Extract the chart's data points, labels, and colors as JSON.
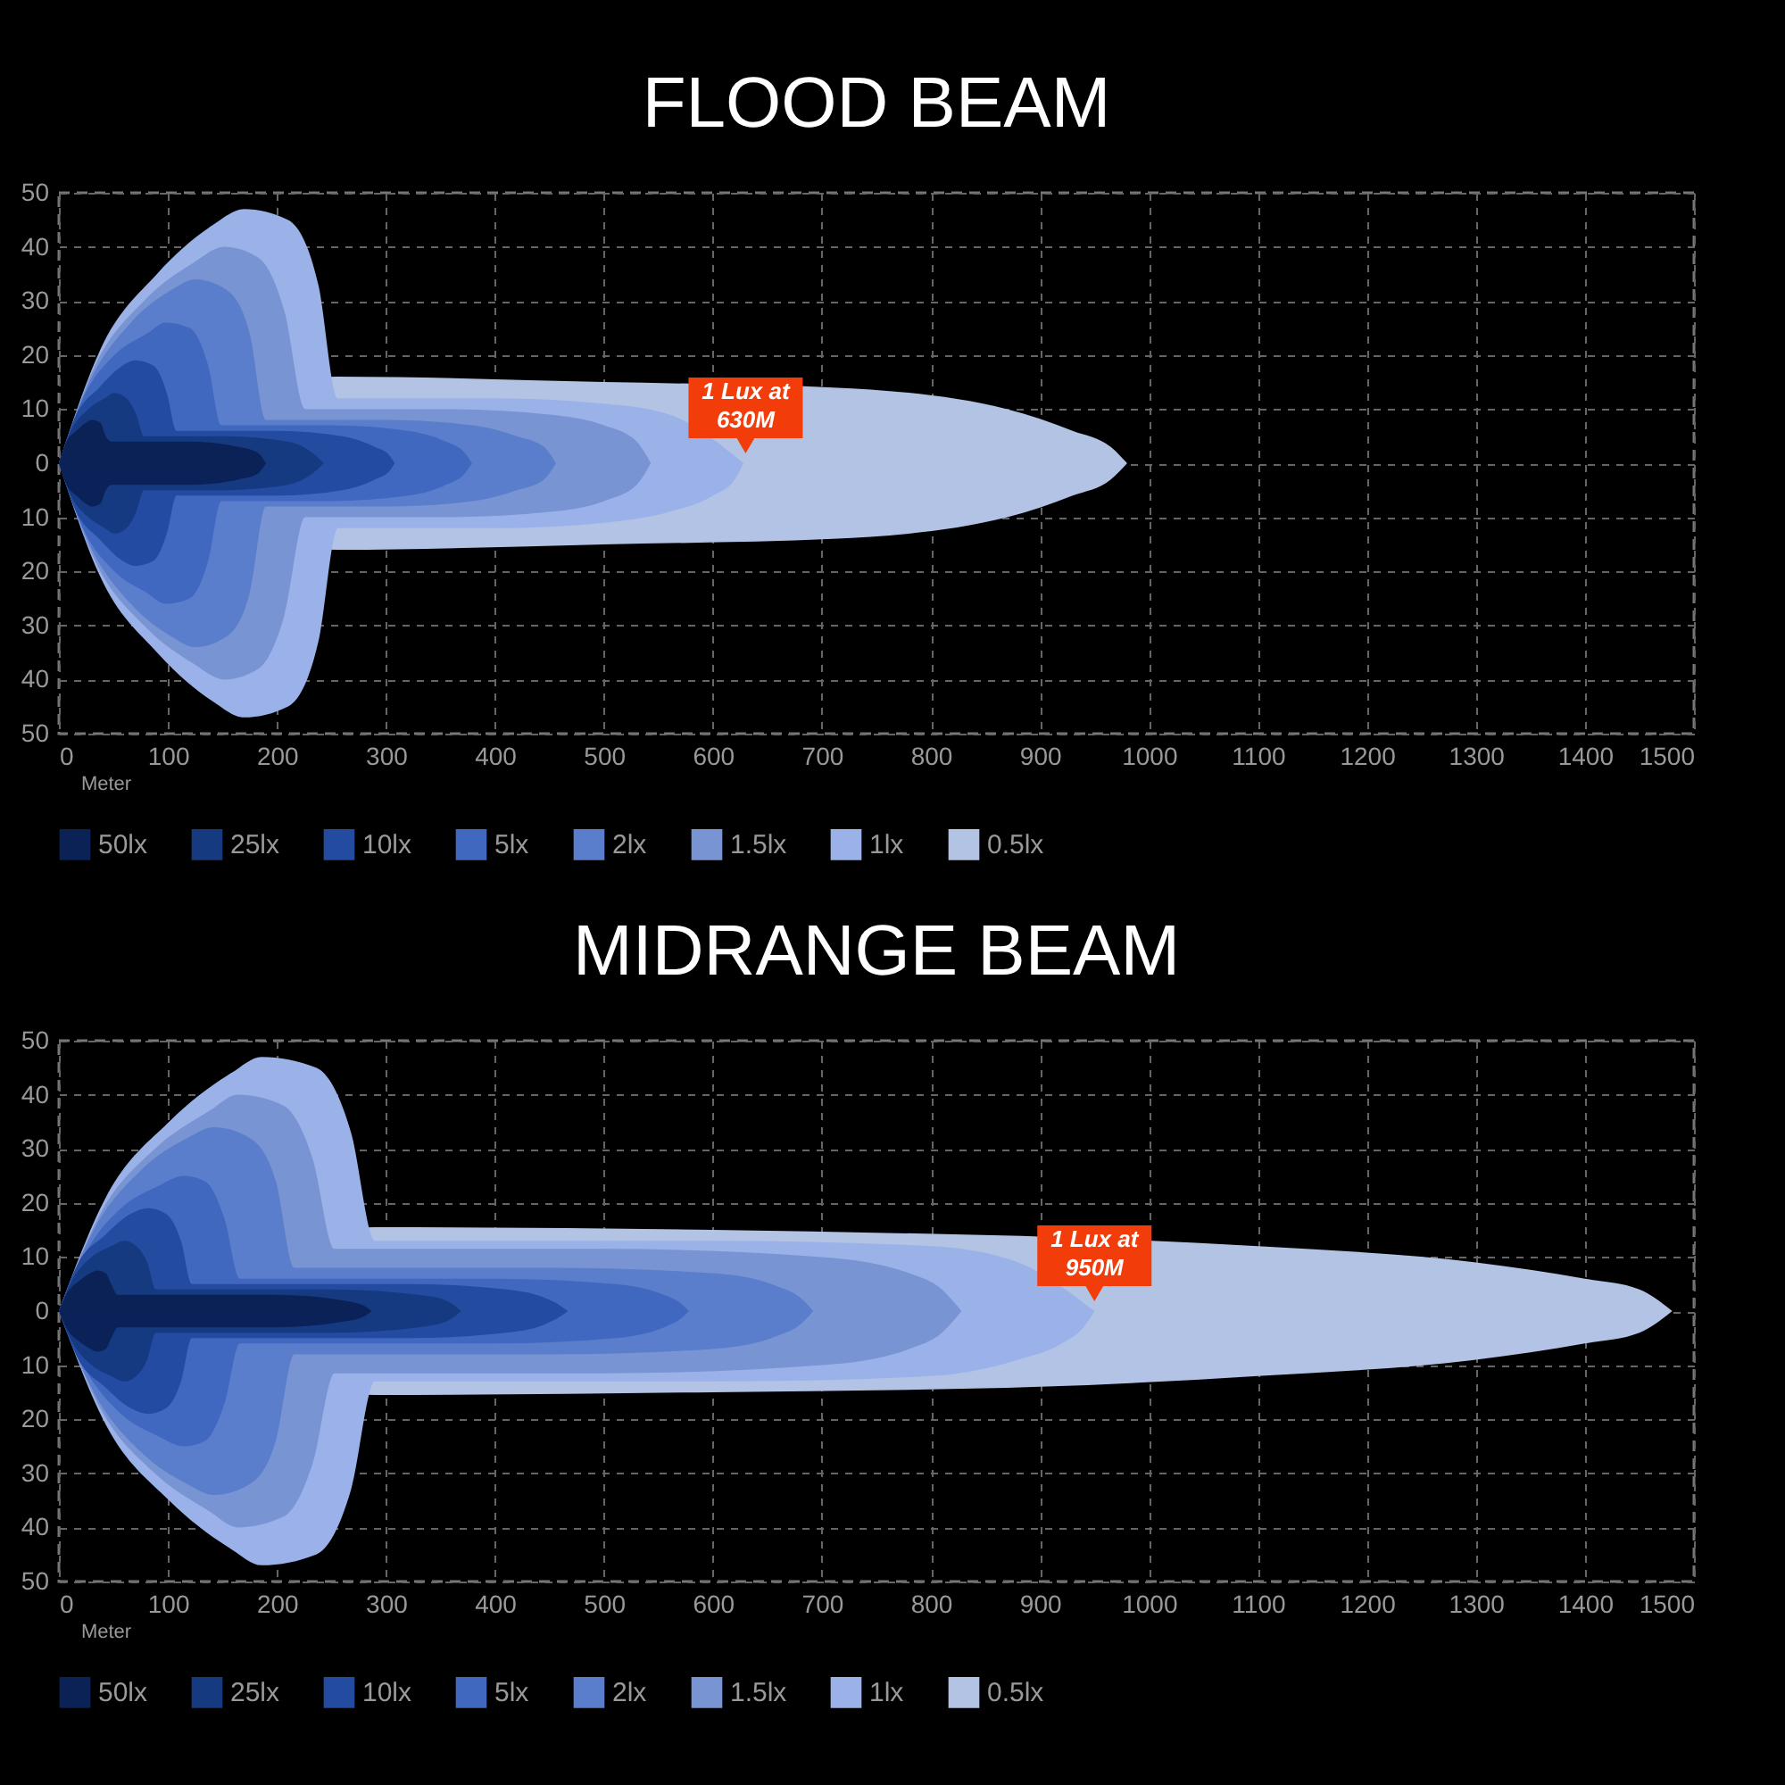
{
  "chart_data": [
    {
      "type": "area",
      "title": "FLOOD BEAM",
      "xlabel": "Meter",
      "xlim": [
        0,
        1500
      ],
      "xticks": [
        0,
        100,
        200,
        300,
        400,
        500,
        600,
        700,
        800,
        900,
        1000,
        1100,
        1200,
        1300,
        1400,
        1500
      ],
      "ylim": [
        -50,
        50
      ],
      "yticks": [
        {
          "value": -50,
          "label": "50"
        },
        {
          "value": -40,
          "label": "40"
        },
        {
          "value": -30,
          "label": "30"
        },
        {
          "value": -20,
          "label": "20"
        },
        {
          "value": -10,
          "label": "10"
        },
        0,
        10,
        20,
        30,
        40,
        50
      ],
      "grid": true,
      "legend": "bottom",
      "annotations": [
        {
          "text": "1 Lux at\n630M",
          "x": 630,
          "y": 0
        }
      ],
      "series": [
        {
          "color": "#0b2258",
          "x": [
            0,
            7,
            16,
            25,
            30,
            38,
            43,
            48,
            120,
            165,
            182,
            190
          ],
          "values": [
            0,
            -4,
            -6,
            -7.5,
            -8,
            -7.5,
            -5,
            -4,
            -4,
            -3,
            -2,
            0
          ]
        },
        {
          "name": "50lx",
          "color": "#0b2257",
          "x": [
            0,
            7,
            16,
            25,
            30,
            38,
            43,
            48,
            120,
            165,
            182,
            190
          ],
          "values": [
            0,
            4,
            6,
            7.5,
            8,
            7.5,
            5,
            4,
            4,
            3,
            2,
            0
          ]
        },
        {
          "color": "#163a81",
          "x": [
            0,
            11,
            27,
            42,
            51,
            62,
            71,
            78,
            150,
            210,
            232,
            243
          ],
          "values": [
            0,
            -6,
            -10,
            -12,
            -13,
            -12,
            -9,
            -5,
            -5,
            -4,
            -2,
            0
          ]
        },
        {
          "name": "25lx",
          "color": "#163a80",
          "x": [
            0,
            11,
            27,
            42,
            51,
            62,
            71,
            78,
            150,
            210,
            232,
            243
          ],
          "values": [
            0,
            6,
            10,
            12,
            13,
            12,
            9,
            5,
            5,
            4,
            2,
            0
          ]
        },
        {
          "color": "#234ba1",
          "x": [
            0,
            16,
            37,
            58,
            70,
            87,
            99,
            108,
            200,
            260,
            290,
            303,
            308
          ],
          "values": [
            0,
            -9,
            -14,
            -18,
            -19,
            -18,
            -13,
            -6,
            -6,
            -5,
            -3,
            -1.5,
            0
          ]
        },
        {
          "name": "10lx",
          "color": "#234ba0",
          "x": [
            0,
            16,
            37,
            58,
            70,
            87,
            99,
            108,
            200,
            260,
            290,
            303,
            308
          ],
          "values": [
            0,
            9,
            14,
            18,
            19,
            18,
            13,
            6,
            6,
            5,
            3,
            1.5,
            0
          ]
        },
        {
          "color": "#4068c0",
          "x": [
            0,
            22,
            51,
            81,
            98,
            120,
            137,
            149,
            250,
            320,
            355,
            372,
            379
          ],
          "values": [
            0,
            -12,
            -20,
            -24,
            -26,
            -25,
            -18,
            -7,
            -7,
            -6,
            -4,
            -2,
            0
          ]
        },
        {
          "name": "5lx",
          "color": "#4068bf",
          "x": [
            0,
            22,
            51,
            81,
            98,
            120,
            137,
            149,
            250,
            320,
            355,
            372,
            379
          ],
          "values": [
            0,
            12,
            20,
            24,
            26,
            25,
            18,
            7,
            7,
            6,
            4,
            2,
            0
          ]
        },
        {
          "color": "#5a7ecc",
          "x": [
            0,
            28,
            66,
            103,
            125,
            154,
            175,
            190,
            300,
            380,
            420,
            445,
            456
          ],
          "values": [
            0,
            -15,
            -26,
            -32,
            -34,
            -32,
            -24,
            -8,
            -8,
            -7,
            -5,
            -3,
            0
          ]
        },
        {
          "name": "2lx",
          "color": "#5a7ecb",
          "x": [
            0,
            28,
            66,
            103,
            125,
            154,
            175,
            190,
            300,
            380,
            420,
            445,
            456
          ],
          "values": [
            0,
            15,
            26,
            32,
            34,
            32,
            24,
            8,
            8,
            7,
            5,
            3,
            0
          ]
        },
        {
          "color": "#7894d3",
          "x": [
            0,
            33,
            78,
            123,
            152,
            183,
            207,
            226,
            350,
            450,
            500,
            530,
            543
          ],
          "values": [
            0,
            -18,
            -30,
            -37,
            -40,
            -38,
            -28,
            -10,
            -10,
            -9,
            -7,
            -4,
            0
          ]
        },
        {
          "name": "1.5lx",
          "color": "#7894d2",
          "x": [
            0,
            33,
            78,
            123,
            152,
            183,
            207,
            226,
            350,
            450,
            500,
            530,
            543
          ],
          "values": [
            0,
            18,
            30,
            37,
            40,
            38,
            28,
            10,
            10,
            9,
            7,
            4,
            0
          ]
        },
        {
          "color": "#9ab2e9",
          "x": [
            0,
            38,
            90,
            141,
            170,
            210,
            238,
            256,
            400,
            500,
            560,
            600,
            620,
            628
          ],
          "values": [
            0,
            -21,
            -35,
            -44,
            -47,
            -45,
            -33,
            -12,
            -12,
            -11,
            -9,
            -6,
            -3,
            0
          ]
        },
        {
          "name": "1lx",
          "color": "#9ab2e8",
          "x": [
            0,
            38,
            90,
            141,
            170,
            210,
            238,
            256,
            400,
            500,
            560,
            628
          ],
          "values": [
            0,
            21,
            35,
            44,
            47,
            45,
            33,
            12,
            12,
            11,
            9,
            0
          ]
        },
        {
          "color": "#b2c3e5",
          "x": [
            0,
            256,
            500,
            710,
            870,
            930,
            965,
            980
          ],
          "values": [
            0,
            -16,
            -15,
            -14,
            -10,
            -6,
            -3,
            0
          ]
        },
        {
          "name": "0.5lx",
          "color": "#b2c3e4",
          "x": [
            0,
            256,
            500,
            710,
            870,
            930,
            965,
            980
          ],
          "values": [
            0,
            16,
            15,
            14,
            10,
            6,
            3,
            0
          ]
        }
      ]
    },
    {
      "type": "area",
      "title": "MIDRANGE BEAM",
      "xlabel": "Meter",
      "xlim": [
        0,
        1500
      ],
      "xticks": [
        0,
        100,
        200,
        300,
        400,
        500,
        600,
        700,
        800,
        900,
        1000,
        1100,
        1200,
        1300,
        1400,
        1500
      ],
      "ylim": [
        -50,
        50
      ],
      "yticks": [
        {
          "value": -50,
          "label": "50"
        },
        {
          "value": -40,
          "label": "40"
        },
        {
          "value": -30,
          "label": "30"
        },
        {
          "value": -20,
          "label": "20"
        },
        {
          "value": -10,
          "label": "10"
        },
        0,
        10,
        20,
        30,
        40,
        50
      ],
      "grid": true,
      "legend": "bottom",
      "annotations": [
        {
          "text": "1 Lux at\n950M",
          "x": 950,
          "y": 0
        }
      ],
      "series": [
        {
          "color": "#0b2258",
          "x": [
            0,
            8,
            18,
            29,
            35,
            43,
            48,
            54,
            200,
            260,
            280,
            287
          ],
          "values": [
            0,
            -3.5,
            -5.5,
            -7,
            -7.5,
            -7,
            -5,
            -3,
            -3,
            -2,
            -1,
            0
          ]
        },
        {
          "name": "50lx",
          "color": "#0b2257",
          "x": [
            0,
            8,
            18,
            29,
            35,
            43,
            48,
            54,
            200,
            260,
            280,
            287
          ],
          "values": [
            0,
            3.5,
            5.5,
            7,
            7.5,
            7,
            5,
            3,
            3,
            2,
            1,
            0
          ]
        },
        {
          "color": "#163a81",
          "x": [
            0,
            13,
            30,
            48,
            60,
            71,
            81,
            89,
            250,
            330,
            355,
            369
          ],
          "values": [
            0,
            -6,
            -10,
            -12,
            -13,
            -12,
            -9,
            -4,
            -4,
            -3,
            -2,
            0
          ]
        },
        {
          "name": "25lx",
          "color": "#163a80",
          "x": [
            0,
            13,
            30,
            48,
            60,
            71,
            81,
            89,
            250,
            330,
            355,
            369
          ],
          "values": [
            0,
            6,
            10,
            12,
            13,
            12,
            9,
            4,
            4,
            3,
            2,
            0
          ]
        },
        {
          "color": "#234ba1",
          "x": [
            0,
            18,
            42,
            66,
            82,
            98,
            112,
            122,
            320,
            410,
            445,
            460,
            467
          ],
          "values": [
            0,
            -9,
            -14,
            -18,
            -19,
            -18,
            -13,
            -5,
            -5,
            -4,
            -2.5,
            -1,
            0
          ]
        },
        {
          "name": "10lx",
          "color": "#234ba0",
          "x": [
            0,
            18,
            42,
            66,
            82,
            98,
            112,
            122,
            320,
            410,
            445,
            460,
            467
          ],
          "values": [
            0,
            9,
            14,
            18,
            19,
            18,
            13,
            5,
            5,
            4,
            2.5,
            1,
            0
          ]
        },
        {
          "color": "#4068c0",
          "x": [
            0,
            25,
            57,
            90,
            115,
            134,
            152,
            166,
            400,
            510,
            555,
            570,
            578
          ],
          "values": [
            0,
            -11,
            -19,
            -23,
            -25,
            -24,
            -17,
            -6,
            -6,
            -5,
            -3,
            -1.5,
            0
          ]
        },
        {
          "name": "5lx",
          "color": "#4068bf",
          "x": [
            0,
            25,
            57,
            90,
            115,
            134,
            152,
            166,
            400,
            510,
            555,
            570,
            578
          ],
          "values": [
            0,
            11,
            19,
            23,
            25,
            24,
            17,
            6,
            6,
            5,
            3,
            1.5,
            0
          ]
        },
        {
          "color": "#5a7ecc",
          "x": [
            0,
            32,
            75,
            118,
            142,
            175,
            199,
            216,
            450,
            600,
            660,
            680,
            692
          ],
          "values": [
            0,
            -15,
            -26,
            -32,
            -34,
            -32,
            -24,
            -8,
            -8,
            -7,
            -4.5,
            -2.5,
            0
          ]
        },
        {
          "name": "2lx",
          "color": "#5a7ecb",
          "x": [
            0,
            32,
            75,
            118,
            142,
            175,
            199,
            216,
            450,
            600,
            660,
            680,
            692
          ],
          "values": [
            0,
            15,
            26,
            32,
            34,
            32,
            24,
            8,
            8,
            7,
            4.5,
            2.5,
            0
          ]
        },
        {
          "color": "#7894d3",
          "x": [
            0,
            38,
            88,
            138,
            164,
            206,
            233,
            253,
            500,
            700,
            780,
            810,
            828
          ],
          "values": [
            0,
            -18,
            -30,
            -37,
            -40,
            -38,
            -28,
            -11.5,
            -11.5,
            -10,
            -7,
            -4,
            0
          ]
        },
        {
          "name": "1.5lx",
          "color": "#7894d2",
          "x": [
            0,
            38,
            88,
            138,
            164,
            206,
            233,
            253,
            500,
            700,
            780,
            810,
            828
          ],
          "values": [
            0,
            18,
            30,
            37,
            40,
            38,
            28,
            11.5,
            11.5,
            10,
            7,
            4,
            0
          ]
        },
        {
          "color": "#9ab2e9",
          "x": [
            0,
            43,
            101,
            158,
            186,
            236,
            268,
            290,
            600,
            800,
            880,
            920,
            940,
            950
          ],
          "values": [
            0,
            -21,
            -35,
            -44,
            -47,
            -45,
            -33,
            -13,
            -13,
            -12,
            -9,
            -6,
            -3,
            0
          ]
        },
        {
          "name": "1lx",
          "color": "#9ab2e8",
          "x": [
            0,
            43,
            101,
            158,
            186,
            236,
            268,
            290,
            600,
            800,
            880,
            950
          ],
          "values": [
            0,
            21,
            35,
            44,
            47,
            45,
            33,
            13,
            13,
            12,
            9,
            0
          ]
        },
        {
          "color": "#b2c3e5",
          "x": [
            0,
            290,
            600,
            900,
            1100,
            1300,
            1400,
            1450,
            1480
          ],
          "values": [
            0,
            -15.5,
            -15,
            -14,
            -12,
            -9,
            -6,
            -4,
            0
          ]
        },
        {
          "name": "0.5lx",
          "color": "#b2c3e4",
          "x": [
            0,
            290,
            600,
            1100,
            1300,
            1400,
            1450,
            1480
          ],
          "values": [
            0,
            15.5,
            15,
            12,
            9,
            6,
            4,
            0
          ]
        }
      ]
    }
  ]
}
